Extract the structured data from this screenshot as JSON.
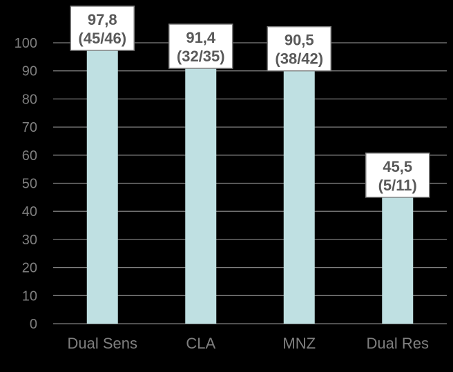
{
  "chart_data": {
    "type": "bar",
    "title": "",
    "xlabel": "",
    "ylabel": "",
    "categories": [
      "Dual Sens",
      "CLA",
      "MNZ",
      "Dual Res"
    ],
    "values": [
      97.8,
      91.4,
      90.5,
      45.5
    ],
    "value_labels": [
      "97,8",
      "91,4",
      "90,5",
      "45,5"
    ],
    "count_labels": [
      "(45/46)",
      "(32/35)",
      "(38/42)",
      "(5/11)"
    ],
    "ylim": [
      0,
      100
    ],
    "yticks": [
      0,
      10,
      20,
      30,
      40,
      50,
      60,
      70,
      80,
      90,
      100
    ],
    "grid": true,
    "legend": "none"
  },
  "colors": {
    "background": "#000000",
    "bar": "#bfe0e2",
    "grid": "#7f7f7f",
    "tick_text": "#7f7f7f",
    "label_box_fill": "#ffffff",
    "label_box_border": "#7f7f7f",
    "label_text": "#595959"
  }
}
